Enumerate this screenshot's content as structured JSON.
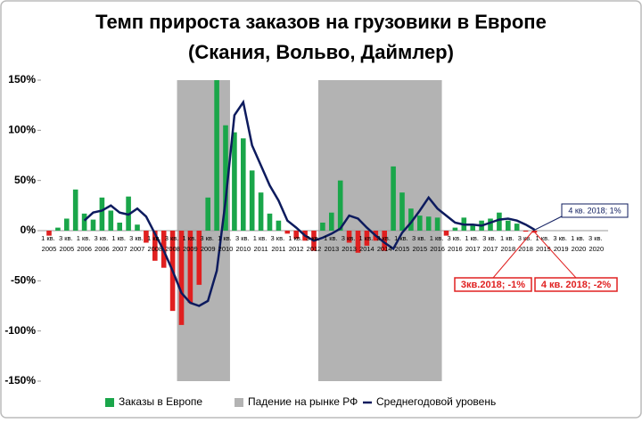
{
  "chart_data": {
    "type": "bar_line",
    "title": "Темп прироста заказов на грузовики в Европе",
    "subtitle": "(Скания, Вольво, Даймлер)",
    "categories": [
      "1 кв. 2005",
      null,
      "3 кв. 2005",
      null,
      "1 кв. 2006",
      null,
      "3 кв. 2006",
      null,
      "1 кв. 2007",
      null,
      "3 кв. 2007",
      null,
      "1 кв. 2008",
      null,
      "3 кв. 2008",
      null,
      "1 кв. 2009",
      null,
      "3 кв. 2009",
      null,
      "1 кв. 2010",
      null,
      "3 кв. 2010",
      null,
      "1 кв. 2011",
      null,
      "3 кв. 2011",
      null,
      "1 кв. 2012",
      null,
      "3 кв. 2012",
      null,
      "1 кв. 2013",
      null,
      "3 кв. 2013",
      null,
      "1 кв. 2014",
      null,
      "3 кв. 2014",
      null,
      "1 кв. 2015",
      null,
      "3 кв. 2015",
      null,
      "1 кв. 2016",
      null,
      "3 кв. 2016",
      null,
      "1 кв. 2017",
      null,
      "3 кв. 2017",
      null,
      "1 кв. 2018",
      null,
      "3 кв. 2018",
      null,
      "1 кв. 2019",
      null,
      "3 кв. 2019",
      null,
      "1 кв. 2020",
      null,
      "3 кв. 2020",
      null
    ],
    "series": [
      {
        "name": "Заказы в Европе",
        "type": "bar",
        "color": "#1aa64a",
        "negative_color": "#e02020",
        "values": [
          -5,
          3,
          12,
          41,
          17,
          11,
          33,
          20,
          8,
          34,
          6,
          -12,
          -30,
          -37,
          -80,
          -94,
          -72,
          -54,
          33,
          150,
          105,
          98,
          92,
          60,
          38,
          17,
          10,
          -3,
          -8,
          -10,
          -20,
          8,
          18,
          50,
          -12,
          -22,
          -15,
          -10,
          -20,
          64,
          38,
          22,
          15,
          14,
          13,
          -5,
          3,
          13,
          5,
          10,
          12,
          18,
          10,
          7,
          -1,
          -2,
          null,
          null,
          null,
          null,
          null,
          null,
          null,
          null
        ]
      },
      {
        "name": "Падение на рынке РФ",
        "type": "band",
        "color": "#b3b3b3",
        "ranges": [
          [
            14.5,
            20.5
          ],
          [
            30.5,
            44.5
          ]
        ]
      },
      {
        "name": "Среднегодовой уровень",
        "type": "line",
        "color": "#0d1b5e",
        "values": [
          null,
          null,
          null,
          null,
          10,
          18,
          20,
          25,
          18,
          16,
          22,
          14,
          -3,
          -20,
          -40,
          -62,
          -72,
          -75,
          -70,
          -40,
          30,
          115,
          128,
          85,
          65,
          45,
          30,
          10,
          3,
          -5,
          -10,
          -7,
          -3,
          2,
          15,
          12,
          3,
          -5,
          -12,
          -18,
          -2,
          8,
          20,
          33,
          22,
          15,
          8,
          6,
          6,
          5,
          8,
          11,
          12,
          10,
          6,
          1,
          null,
          null,
          null,
          null,
          null,
          null,
          null,
          null
        ]
      }
    ],
    "ylim": [
      -150,
      150
    ],
    "yticks": [
      {
        "value": -150,
        "label": "-150%"
      },
      {
        "value": -100,
        "label": "-100%"
      },
      {
        "value": -50,
        "label": "-50%"
      },
      {
        "value": 0,
        "label": "0%"
      },
      {
        "value": 50,
        "label": "50%"
      },
      {
        "value": 100,
        "label": "100%"
      },
      {
        "value": 150,
        "label": "150%"
      }
    ],
    "annotations": [
      {
        "text": "3кв.2018; -1%",
        "color": "#e02020"
      },
      {
        "text": "4 кв. 2018; -2%",
        "color": "#e02020"
      },
      {
        "text": "4 кв. 2018; 1%",
        "color": "#0d1b5e"
      }
    ]
  }
}
